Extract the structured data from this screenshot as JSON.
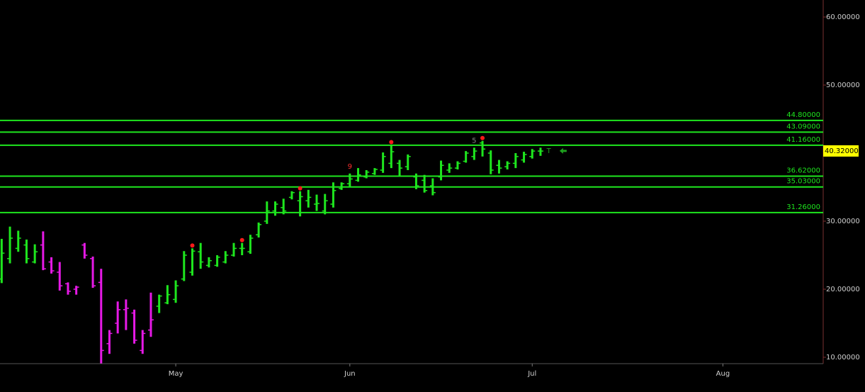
{
  "chart_data": {
    "type": "ohlc",
    "open": [
      21.5,
      24.5,
      26,
      26.5,
      24,
      26.5,
      24,
      22.5,
      20.8,
      20,
      26.5,
      24.5,
      21,
      12,
      15,
      17,
      16.5,
      11,
      14,
      17.5,
      18,
      18.5,
      21.5,
      22.5,
      25.5,
      23.5,
      23.5,
      24,
      25,
      26,
      25.5,
      28,
      30,
      31.5,
      32,
      33.5,
      33,
      33,
      32.5,
      31.5,
      32.5,
      34.8,
      35.5,
      36,
      36.5,
      37,
      37.5,
      38.5,
      38.5,
      38,
      36.5,
      36,
      35.2,
      36.5,
      37.5,
      37.8,
      38.8,
      39.5,
      41.5,
      40,
      38.2,
      38,
      38.5,
      39,
      39.5,
      40.3
    ],
    "high": [
      27.4,
      29.2,
      28.6,
      27.3,
      26.6,
      28.5,
      24.7,
      24,
      21,
      20.5,
      26.8,
      24.8,
      23,
      14,
      18.2,
      18.5,
      17,
      14,
      19.5,
      19.2,
      20.6,
      21.3,
      25.6,
      26,
      26.8,
      24.7,
      25,
      25.6,
      26.8,
      26.8,
      28,
      29.8,
      32.9,
      32.9,
      33.3,
      34.4,
      34.4,
      34.6,
      33.9,
      34,
      35.7,
      35.7,
      37,
      37.8,
      37.5,
      37.8,
      40.1,
      41.2,
      39,
      39.8,
      37,
      36.8,
      36.3,
      38.9,
      38.5,
      38.8,
      40.3,
      40.8,
      41.8,
      40.4,
      39,
      38.8,
      40,
      40.2,
      40.6,
      40.8
    ],
    "low": [
      20.9,
      23.8,
      25.5,
      23.8,
      23.8,
      22.8,
      22.3,
      19.8,
      19.2,
      19.2,
      24.5,
      20.2,
      9.1,
      10.5,
      13.5,
      14,
      12,
      10.5,
      13,
      16.5,
      17.8,
      18,
      21.2,
      22,
      23,
      23.2,
      23.3,
      23.8,
      24.8,
      25,
      25.2,
      27.6,
      29.6,
      30.8,
      31,
      33.2,
      30.7,
      32,
      31.5,
      31,
      32,
      34.6,
      35,
      35.8,
      36.3,
      36.8,
      37.1,
      37.8,
      36.6,
      37.5,
      34.7,
      34.2,
      33.8,
      36,
      37.1,
      37.6,
      38.6,
      39,
      39.5,
      36.9,
      37,
      37.6,
      37.8,
      38.6,
      39.2,
      39.6
    ],
    "close": [
      25.3,
      27.5,
      27.5,
      24.5,
      25.5,
      23,
      22.7,
      20.5,
      19.7,
      20.3,
      25,
      20.5,
      11,
      13.5,
      17,
      17.2,
      12.5,
      13.5,
      15.5,
      19,
      19.2,
      20.5,
      25,
      25.6,
      24,
      24.2,
      24.7,
      25,
      26,
      26,
      27.5,
      29.5,
      31.5,
      32.5,
      31.5,
      34.2,
      33.6,
      33.5,
      32.6,
      33,
      34.5,
      35.5,
      36.2,
      36.8,
      37.2,
      37.6,
      39.5,
      40.2,
      37.8,
      39.5,
      35.2,
      34.5,
      34.2,
      38.2,
      37.8,
      38.5,
      40,
      40.3,
      40.6,
      37.5,
      37.8,
      38.5,
      39.5,
      39.8,
      40.3,
      40.3
    ],
    "bar_colors": [
      "#1ee61e",
      "#1ee61e",
      "#1ee61e",
      "#1ee61e",
      "#1ee61e",
      "#e619e6",
      "#e619e6",
      "#e619e6",
      "#e619e6",
      "#e619e6",
      "#e619e6",
      "#e619e6",
      "#e619e6",
      "#e619e6",
      "#e619e6",
      "#e619e6",
      "#e619e6",
      "#e619e6",
      "#e619e6",
      "#1ee61e",
      "#1ee61e",
      "#1ee61e",
      "#1ee61e",
      "#1ee61e",
      "#1ee61e",
      "#1ee61e",
      "#1ee61e",
      "#1ee61e",
      "#1ee61e",
      "#1ee61e",
      "#1ee61e",
      "#1ee61e",
      "#1ee61e",
      "#1ee61e",
      "#1ee61e",
      "#1ee61e",
      "#1ee61e",
      "#1ee61e",
      "#1ee61e",
      "#1ee61e",
      "#1ee61e",
      "#1ee61e",
      "#1ee61e",
      "#1ee61e",
      "#1ee61e",
      "#1ee61e",
      "#1ee61e",
      "#1ee61e",
      "#1ee61e",
      "#1ee61e",
      "#1ee61e",
      "#1ee61e",
      "#1ee61e",
      "#1ee61e",
      "#1ee61e",
      "#1ee61e",
      "#1ee61e",
      "#1ee61e",
      "#1ee61e",
      "#1ee61e",
      "#1ee61e",
      "#1ee61e",
      "#1ee61e",
      "#1ee61e",
      "#1ee61e",
      "#1ee61e"
    ],
    "signal_bars": [
      23,
      29,
      36,
      47,
      58
    ],
    "signal_color": "#ff1a1a",
    "annotations": [
      {
        "bar": 42,
        "text": "9",
        "color": "#ff3030"
      },
      {
        "bar": 57,
        "text": "5",
        "color": "#888888"
      },
      {
        "bar": 66,
        "text": "T",
        "color": "#1ea01e"
      }
    ],
    "levels": [
      {
        "value": 44.8,
        "label": "44.80000"
      },
      {
        "value": 43.09,
        "label": "43.09000"
      },
      {
        "value": 41.16,
        "label": "41.16000"
      },
      {
        "value": 36.62,
        "label": "36.62000"
      },
      {
        "value": 35.03,
        "label": "35.03000"
      },
      {
        "value": 31.26,
        "label": "31.26000"
      }
    ],
    "level_color": "#1ee61e",
    "last_price": {
      "value": 40.32,
      "label": "40.32000"
    },
    "xlim": [
      -0.2,
      99.1
    ],
    "xticks": [
      {
        "value": 21,
        "label": "May"
      },
      {
        "value": 42,
        "label": "Jun"
      },
      {
        "value": 64,
        "label": "Jul"
      },
      {
        "value": 87,
        "label": "Aug"
      }
    ],
    "ylim": [
      9.0625,
      62.5
    ],
    "yticks": [
      {
        "value": 10,
        "label": "10.00000"
      },
      {
        "value": 20,
        "label": "20.00000"
      },
      {
        "value": 30,
        "label": "30.00000"
      },
      {
        "value": 50,
        "label": "50.00000"
      },
      {
        "value": 60,
        "label": "60.00000"
      }
    ]
  }
}
